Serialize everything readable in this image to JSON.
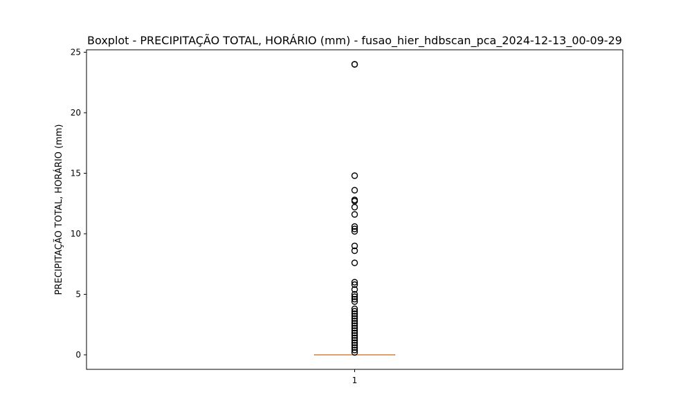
{
  "chart_data": {
    "type": "box",
    "title": "Boxplot - PRECIPITAÇÃO TOTAL, HORÁRIO (mm) - fusao_hier_hdbscan_pca_2024-12-13_00-09-29",
    "xlabel": "",
    "ylabel": "PRECIPITAÇÃO TOTAL, HORÁRIO (mm)",
    "ylim": [
      -1.2,
      25.2
    ],
    "yticks": [
      "0",
      "5",
      "10",
      "15",
      "20",
      "25"
    ],
    "xticks": [
      "1"
    ],
    "grid": false,
    "boxes": [
      {
        "label": "1",
        "whisker_low": 0,
        "q1": 0,
        "median": 0,
        "q3": 0,
        "whisker_high": 0,
        "outliers": [
          24.0,
          24.0,
          14.8,
          13.6,
          12.8,
          12.7,
          12.2,
          11.6,
          10.6,
          10.4,
          10.2,
          9.0,
          8.6,
          7.6,
          6.0,
          5.8,
          5.4,
          5.0,
          4.8,
          4.6,
          4.4,
          3.8,
          3.6,
          3.4,
          3.2,
          3.0,
          2.8,
          2.6,
          2.4,
          2.2,
          2.0,
          1.8,
          1.6,
          1.4,
          1.2,
          1.0,
          0.8,
          0.6,
          0.4,
          0.2
        ]
      }
    ],
    "colors": {
      "box": "#000000",
      "median": "#d9823b",
      "outlier": "#000000"
    }
  }
}
